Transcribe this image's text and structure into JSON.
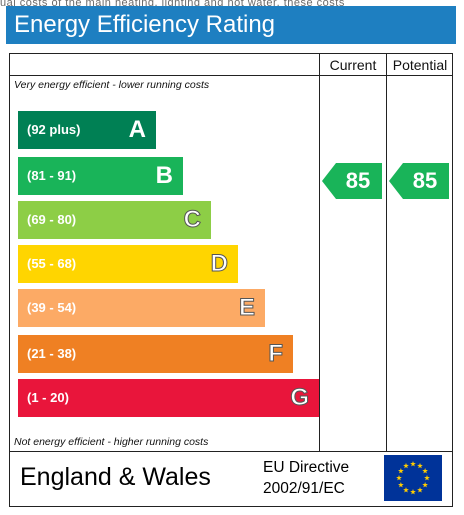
{
  "top_strip": "ual costs of the main heating, lighting and hot water, these costs",
  "title": "Energy Efficiency Rating",
  "columns": {
    "current": "Current",
    "potential": "Potential"
  },
  "notes": {
    "top": "Very energy efficient - lower running costs",
    "bottom": "Not energy efficient - higher running costs"
  },
  "bands": [
    {
      "range": "(92 plus)",
      "letter": "A",
      "color": "#008054"
    },
    {
      "range": "(81 - 91)",
      "letter": "B",
      "color": "#19b459"
    },
    {
      "range": "(69 - 80)",
      "letter": "C",
      "color": "#8dce46"
    },
    {
      "range": "(55 - 68)",
      "letter": "D",
      "color": "#ffd500"
    },
    {
      "range": "(39 - 54)",
      "letter": "E",
      "color": "#fcaa65"
    },
    {
      "range": "(21 - 38)",
      "letter": "F",
      "color": "#ef8023"
    },
    {
      "range": "(1 - 20)",
      "letter": "G",
      "color": "#e9153b"
    }
  ],
  "ratings": {
    "current": {
      "value": "85",
      "band": "B",
      "color": "#19b459"
    },
    "potential": {
      "value": "85",
      "band": "B",
      "color": "#19b459"
    }
  },
  "footer": {
    "country": "England & Wales",
    "directive_line1": "EU Directive",
    "directive_line2": "2002/91/EC"
  },
  "flag": {
    "background": "#003399",
    "stars": "#ffcc00",
    "icon": "eu-flag-icon"
  }
}
